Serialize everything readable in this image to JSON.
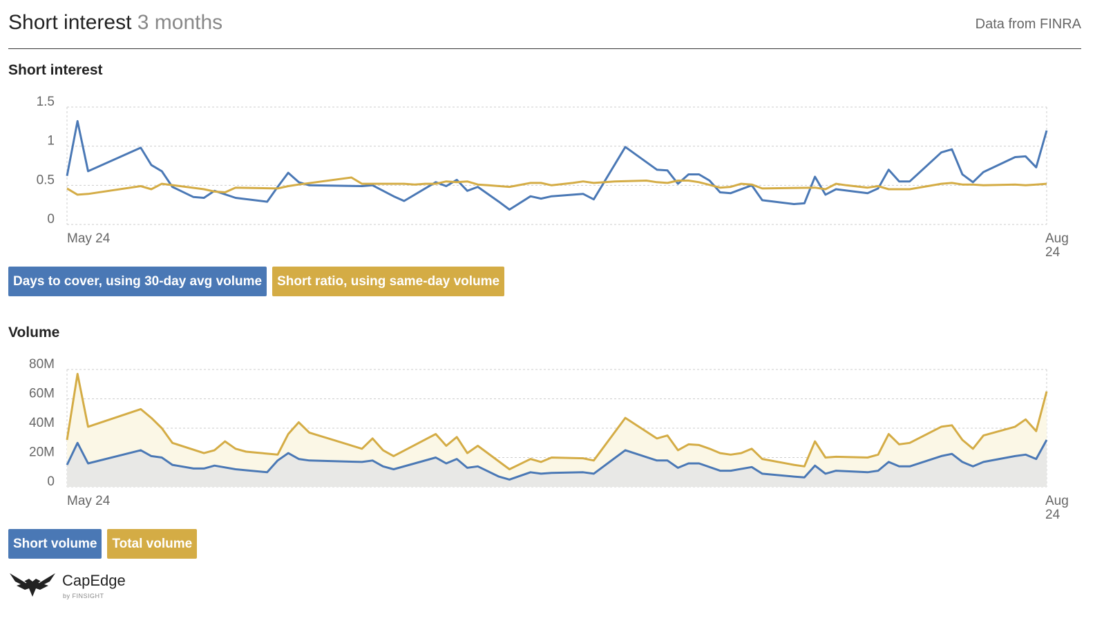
{
  "header": {
    "title": "Short interest",
    "title_period": "3 months",
    "source": "Data from FINRA"
  },
  "colors": {
    "blue": "#4a78b5",
    "gold": "#d4ac45",
    "gold_fill": "#fbf7e6",
    "blue_fill": "#e8e8e6",
    "grid": "#cccccc"
  },
  "logo": {
    "brand": "CapEdge",
    "by": "by FINSIGHT"
  },
  "chart_data": [
    {
      "type": "line",
      "title": "Short interest",
      "y_ticks": [
        "1.5",
        "1",
        "0.5",
        "0"
      ],
      "x_ticks": [
        "May 24",
        "Aug 24"
      ],
      "ylim": [
        0,
        1.5
      ],
      "grid": true,
      "legend_position": "bottom-left",
      "series": [
        {
          "name": "Days to cover, using 30-day avg volume",
          "color": "#4a78b5",
          "points": [
            [
              0,
              0.62
            ],
            [
              1,
              1.32
            ],
            [
              2,
              0.68
            ],
            [
              7,
              0.98
            ],
            [
              8,
              0.76
            ],
            [
              9,
              0.68
            ],
            [
              10,
              0.48
            ],
            [
              12,
              0.35
            ],
            [
              13,
              0.34
            ],
            [
              14,
              0.43
            ],
            [
              16,
              0.34
            ],
            [
              19,
              0.29
            ],
            [
              20,
              0.48
            ],
            [
              21,
              0.66
            ],
            [
              22,
              0.54
            ],
            [
              23,
              0.5
            ],
            [
              28,
              0.49
            ],
            [
              29,
              0.5
            ],
            [
              31,
              0.36
            ],
            [
              32,
              0.3
            ],
            [
              35,
              0.54
            ],
            [
              36,
              0.49
            ],
            [
              37,
              0.57
            ],
            [
              38,
              0.43
            ],
            [
              39,
              0.48
            ],
            [
              41,
              0.29
            ],
            [
              42,
              0.19
            ],
            [
              44,
              0.36
            ],
            [
              45,
              0.33
            ],
            [
              46,
              0.36
            ],
            [
              49,
              0.39
            ],
            [
              50,
              0.32
            ],
            [
              53,
              0.99
            ],
            [
              56,
              0.7
            ],
            [
              57,
              0.69
            ],
            [
              58,
              0.52
            ],
            [
              59,
              0.64
            ],
            [
              60,
              0.64
            ],
            [
              61,
              0.56
            ],
            [
              62,
              0.41
            ],
            [
              63,
              0.4
            ],
            [
              65,
              0.5
            ],
            [
              66,
              0.31
            ],
            [
              69,
              0.26
            ],
            [
              70,
              0.27
            ],
            [
              71,
              0.61
            ],
            [
              72,
              0.38
            ],
            [
              73,
              0.45
            ],
            [
              76,
              0.4
            ],
            [
              77,
              0.46
            ],
            [
              78,
              0.7
            ],
            [
              79,
              0.55
            ],
            [
              80,
              0.55
            ],
            [
              83,
              0.92
            ],
            [
              84,
              0.96
            ],
            [
              85,
              0.64
            ],
            [
              86,
              0.54
            ],
            [
              87,
              0.67
            ],
            [
              90,
              0.86
            ],
            [
              91,
              0.87
            ],
            [
              92,
              0.73
            ],
            [
              93,
              1.2
            ]
          ]
        },
        {
          "name": "Short ratio, using same-day volume",
          "color": "#d4ac45",
          "points": [
            [
              0,
              0.46
            ],
            [
              1,
              0.38
            ],
            [
              2,
              0.39
            ],
            [
              7,
              0.49
            ],
            [
              8,
              0.45
            ],
            [
              9,
              0.52
            ],
            [
              13,
              0.45
            ],
            [
              14,
              0.42
            ],
            [
              15,
              0.41
            ],
            [
              16,
              0.47
            ],
            [
              20,
              0.46
            ],
            [
              21,
              0.49
            ],
            [
              22,
              0.51
            ],
            [
              27,
              0.6
            ],
            [
              28,
              0.52
            ],
            [
              32,
              0.52
            ],
            [
              33,
              0.51
            ],
            [
              34,
              0.52
            ],
            [
              35,
              0.52
            ],
            [
              36,
              0.55
            ],
            [
              37,
              0.54
            ],
            [
              38,
              0.55
            ],
            [
              39,
              0.51
            ],
            [
              40,
              0.5
            ],
            [
              42,
              0.48
            ],
            [
              44,
              0.53
            ],
            [
              45,
              0.53
            ],
            [
              46,
              0.5
            ],
            [
              48,
              0.53
            ],
            [
              49,
              0.55
            ],
            [
              50,
              0.53
            ],
            [
              52,
              0.55
            ],
            [
              55,
              0.56
            ],
            [
              56,
              0.54
            ],
            [
              57,
              0.53
            ],
            [
              58,
              0.56
            ],
            [
              59,
              0.56
            ],
            [
              60,
              0.54
            ],
            [
              62,
              0.47
            ],
            [
              63,
              0.48
            ],
            [
              64,
              0.52
            ],
            [
              65,
              0.51
            ],
            [
              66,
              0.46
            ],
            [
              71,
              0.47
            ],
            [
              72,
              0.45
            ],
            [
              73,
              0.52
            ],
            [
              74,
              0.5
            ],
            [
              76,
              0.47
            ],
            [
              77,
              0.49
            ],
            [
              78,
              0.45
            ],
            [
              79,
              0.45
            ],
            [
              80,
              0.45
            ],
            [
              83,
              0.52
            ],
            [
              84,
              0.53
            ],
            [
              85,
              0.51
            ],
            [
              86,
              0.51
            ],
            [
              87,
              0.5
            ],
            [
              90,
              0.51
            ],
            [
              91,
              0.5
            ],
            [
              92,
              0.51
            ],
            [
              93,
              0.52
            ]
          ]
        }
      ]
    },
    {
      "type": "area",
      "title": "Volume",
      "y_ticks": [
        "80M",
        "60M",
        "40M",
        "20M",
        "0"
      ],
      "x_ticks": [
        "May 24",
        "Aug 24"
      ],
      "ylim": [
        0,
        80
      ],
      "y_unit": "M",
      "grid": true,
      "legend_position": "bottom-left",
      "series": [
        {
          "name": "Short volume",
          "color": "#4a78b5",
          "points": [
            [
              0,
              15
            ],
            [
              1,
              30
            ],
            [
              2,
              16
            ],
            [
              7,
              25
            ],
            [
              8,
              21
            ],
            [
              9,
              20
            ],
            [
              10,
              15
            ],
            [
              12,
              12.5
            ],
            [
              13,
              12.5
            ],
            [
              14,
              14.5
            ],
            [
              16,
              12
            ],
            [
              19,
              10
            ],
            [
              20,
              18
            ],
            [
              21,
              23
            ],
            [
              22,
              19
            ],
            [
              23,
              18
            ],
            [
              28,
              17
            ],
            [
              29,
              18
            ],
            [
              30,
              14
            ],
            [
              31,
              12
            ],
            [
              35,
              20
            ],
            [
              36,
              16
            ],
            [
              37,
              19
            ],
            [
              38,
              13
            ],
            [
              39,
              14
            ],
            [
              41,
              7
            ],
            [
              42,
              5
            ],
            [
              44,
              10
            ],
            [
              45,
              9
            ],
            [
              46,
              9.5
            ],
            [
              49,
              10
            ],
            [
              50,
              9
            ],
            [
              53,
              25
            ],
            [
              56,
              18
            ],
            [
              57,
              18
            ],
            [
              58,
              13
            ],
            [
              59,
              16
            ],
            [
              60,
              16
            ],
            [
              62,
              11
            ],
            [
              63,
              11
            ],
            [
              65,
              13.5
            ],
            [
              66,
              9
            ],
            [
              69,
              7
            ],
            [
              70,
              6.5
            ],
            [
              71,
              14.5
            ],
            [
              72,
              9
            ],
            [
              73,
              11
            ],
            [
              76,
              10
            ],
            [
              77,
              11
            ],
            [
              78,
              17
            ],
            [
              79,
              14
            ],
            [
              80,
              14
            ],
            [
              83,
              21
            ],
            [
              84,
              22.5
            ],
            [
              85,
              17
            ],
            [
              86,
              14
            ],
            [
              87,
              17
            ],
            [
              90,
              21
            ],
            [
              91,
              22
            ],
            [
              92,
              19
            ],
            [
              93,
              32
            ]
          ]
        },
        {
          "name": "Total volume",
          "color": "#d4ac45",
          "points": [
            [
              0,
              32
            ],
            [
              1,
              77
            ],
            [
              2,
              41
            ],
            [
              7,
              53
            ],
            [
              8,
              47
            ],
            [
              9,
              40
            ],
            [
              10,
              30
            ],
            [
              13,
              23
            ],
            [
              14,
              25
            ],
            [
              15,
              31
            ],
            [
              16,
              26
            ],
            [
              17,
              24
            ],
            [
              20,
              22
            ],
            [
              21,
              36
            ],
            [
              22,
              44
            ],
            [
              23,
              37
            ],
            [
              28,
              26
            ],
            [
              29,
              33
            ],
            [
              30,
              25
            ],
            [
              31,
              21
            ],
            [
              35,
              36
            ],
            [
              36,
              28
            ],
            [
              37,
              34
            ],
            [
              38,
              23
            ],
            [
              39,
              28
            ],
            [
              42,
              12
            ],
            [
              44,
              19
            ],
            [
              45,
              17
            ],
            [
              46,
              20
            ],
            [
              49,
              19.5
            ],
            [
              50,
              18
            ],
            [
              53,
              47
            ],
            [
              56,
              33
            ],
            [
              57,
              35
            ],
            [
              58,
              25
            ],
            [
              59,
              29
            ],
            [
              60,
              28.5
            ],
            [
              61,
              26
            ],
            [
              62,
              23
            ],
            [
              63,
              22
            ],
            [
              64,
              23
            ],
            [
              65,
              26
            ],
            [
              66,
              19
            ],
            [
              69,
              15
            ],
            [
              70,
              14
            ],
            [
              71,
              31
            ],
            [
              72,
              20
            ],
            [
              73,
              20.5
            ],
            [
              76,
              20
            ],
            [
              77,
              22
            ],
            [
              78,
              36
            ],
            [
              79,
              29
            ],
            [
              80,
              30
            ],
            [
              83,
              41
            ],
            [
              84,
              42
            ],
            [
              85,
              32
            ],
            [
              86,
              26
            ],
            [
              87,
              35
            ],
            [
              90,
              41
            ],
            [
              91,
              46
            ],
            [
              92,
              38
            ],
            [
              93,
              65
            ]
          ]
        }
      ]
    }
  ]
}
